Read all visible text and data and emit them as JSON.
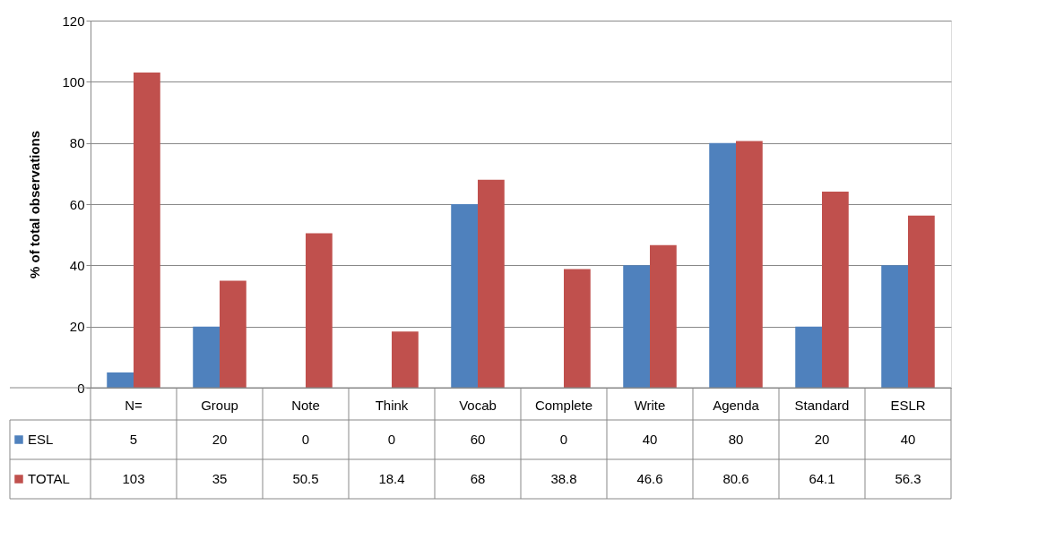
{
  "chart_data": {
    "type": "bar",
    "ylabel": "% of total observations",
    "categories": [
      "N=",
      "Group",
      "Note",
      "Think",
      "Vocab",
      "Complete",
      "Write",
      "Agenda",
      "Standard",
      "ESLR"
    ],
    "series": [
      {
        "name": "ESL",
        "color": "#4f81bd",
        "values": [
          5,
          20,
          0,
          0,
          60,
          0,
          40,
          80,
          20,
          40
        ]
      },
      {
        "name": "TOTAL",
        "color": "#c0504d",
        "values": [
          103,
          35,
          50.5,
          18.4,
          68,
          38.8,
          46.6,
          80.6,
          64.1,
          56.3
        ]
      }
    ],
    "ylim": [
      0,
      120
    ],
    "yticks": [
      0,
      20,
      40,
      60,
      80,
      100,
      120
    ],
    "grid": "y",
    "legend": "bottom left",
    "data_labels": true
  }
}
